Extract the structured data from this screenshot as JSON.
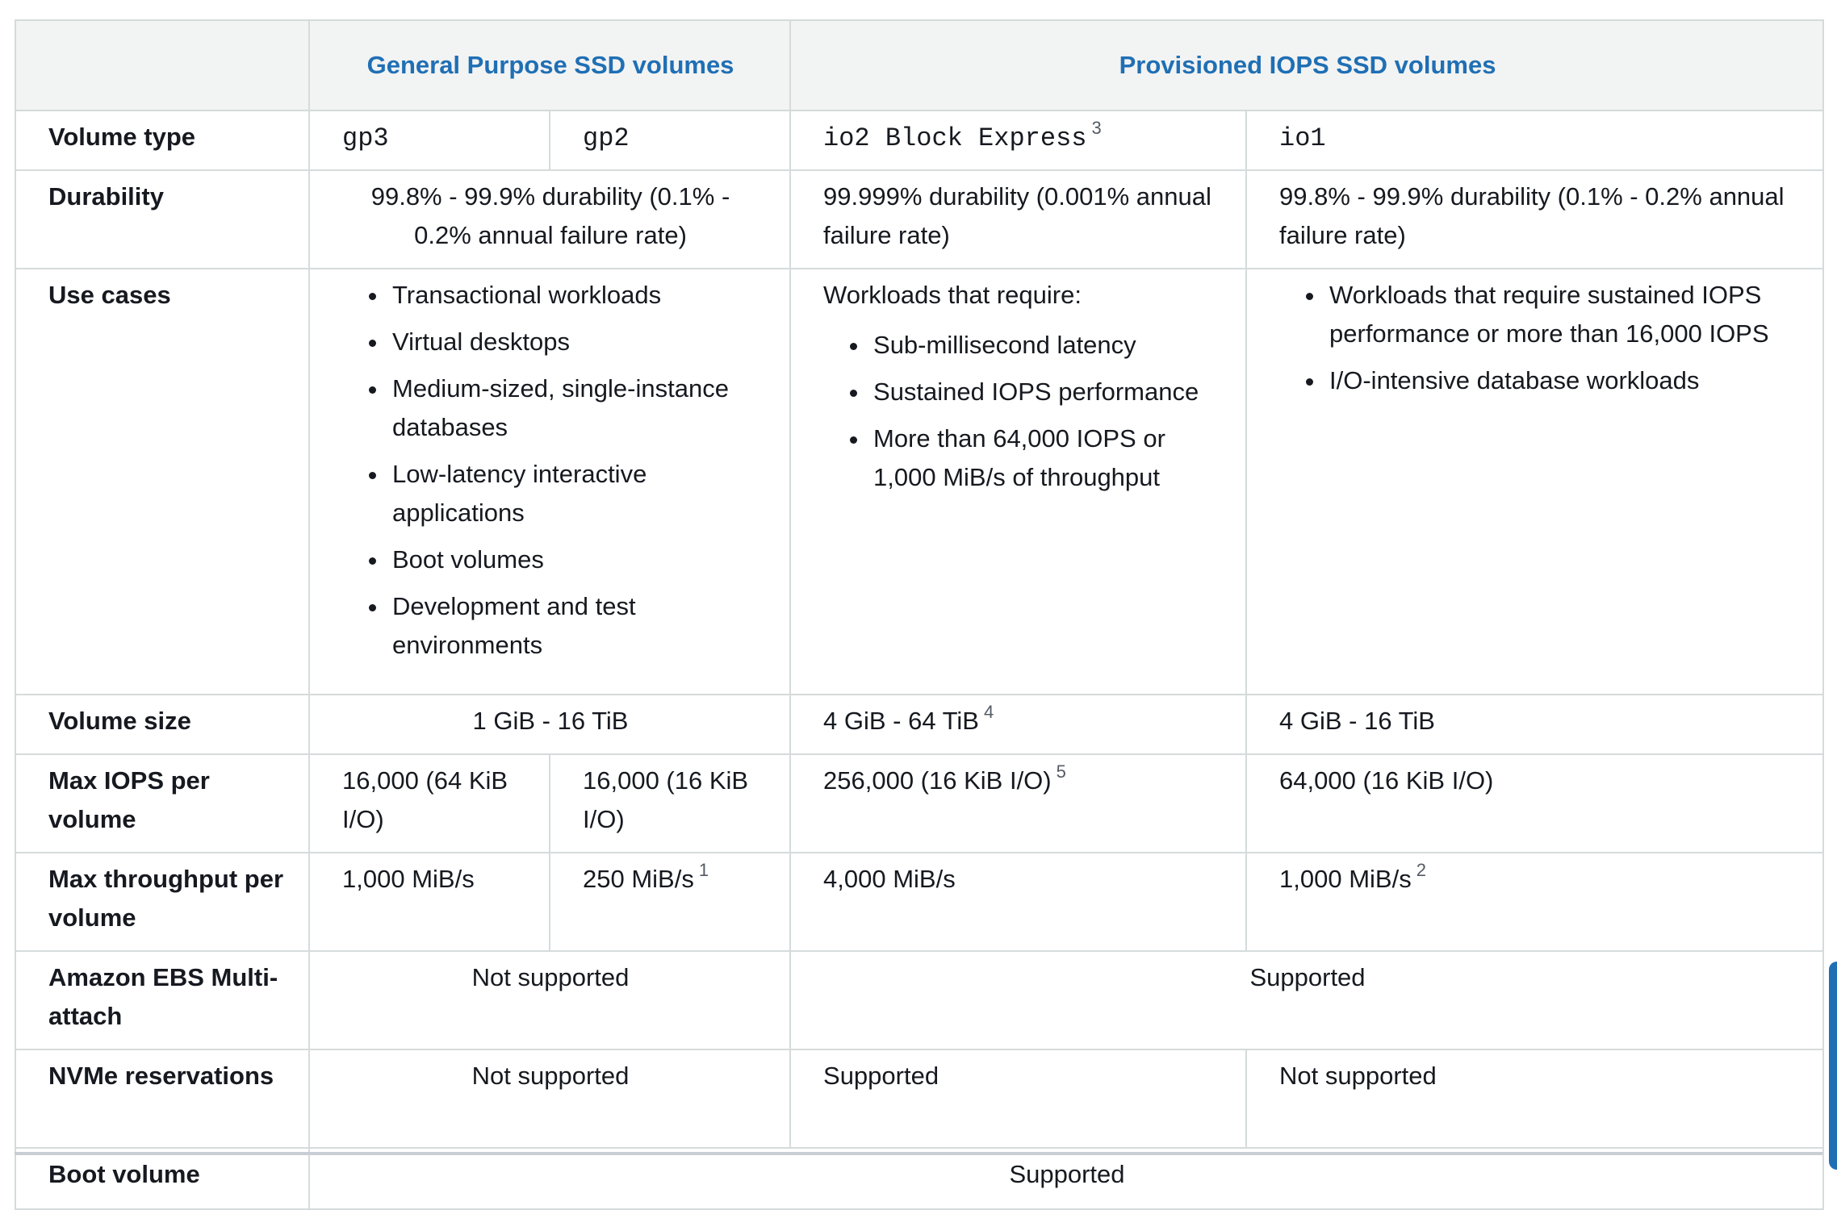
{
  "header": {
    "corner": "",
    "group_general": "General Purpose SSD volumes",
    "group_provisioned": "Provisioned IOPS SSD volumes"
  },
  "rows": {
    "volume_type": {
      "label": "Volume type",
      "gp3": "gp3",
      "gp2": "gp2",
      "io2": "io2 Block Express",
      "io2_note": "3",
      "io1": "io1"
    },
    "durability": {
      "label": "Durability",
      "general": "99.8% - 99.9% durability (0.1% - 0.2% annual failure rate)",
      "io2": "99.999% durability (0.001% annual failure rate)",
      "io1": "99.8% - 99.9% durability (0.1% - 0.2% annual failure rate)"
    },
    "use_cases": {
      "label": "Use cases",
      "general": [
        "Transactional workloads",
        "Virtual desktops",
        "Medium-sized, single-instance databases",
        "Low-latency interactive applications",
        "Boot volumes",
        "Development and test environments"
      ],
      "io2_intro": "Workloads that require:",
      "io2": [
        "Sub-millisecond latency",
        "Sustained IOPS performance",
        "More than 64,000 IOPS or 1,000 MiB/s of throughput"
      ],
      "io1": [
        "Workloads that require sustained IOPS performance or more than 16,000 IOPS",
        "I/O-intensive database workloads"
      ]
    },
    "volume_size": {
      "label": "Volume size",
      "general": "1 GiB - 16 TiB",
      "io2": "4 GiB - 64 TiB",
      "io2_note": "4",
      "io1": "4 GiB - 16 TiB"
    },
    "max_iops": {
      "label": "Max IOPS per volume",
      "gp3": "16,000 (64 KiB I/O)",
      "gp2": "16,000 (16 KiB I/O)",
      "io2": "256,000 (16 KiB I/O)",
      "io2_note": "5",
      "io1": "64,000 (16 KiB I/O)"
    },
    "max_throughput": {
      "label": "Max throughput per volume",
      "gp3": "1,000 MiB/s",
      "gp2": "250 MiB/s",
      "gp2_note": "1",
      "io2": "4,000 MiB/s",
      "io1": "1,000 MiB/s",
      "io1_note": "2"
    },
    "multi_attach": {
      "label": "Amazon EBS Multi-attach",
      "general": "Not supported",
      "provisioned": "Supported"
    },
    "nvme": {
      "label": "NVMe reservations",
      "general": "Not supported",
      "io2": "Supported",
      "io1": "Not supported"
    },
    "boot": {
      "label": "Boot volume",
      "all": "Supported"
    }
  },
  "colors": {
    "header_text": "#1f6fb4",
    "header_bg": "#f2f3f3",
    "border": "#d5dbdb",
    "text": "#16191f"
  }
}
